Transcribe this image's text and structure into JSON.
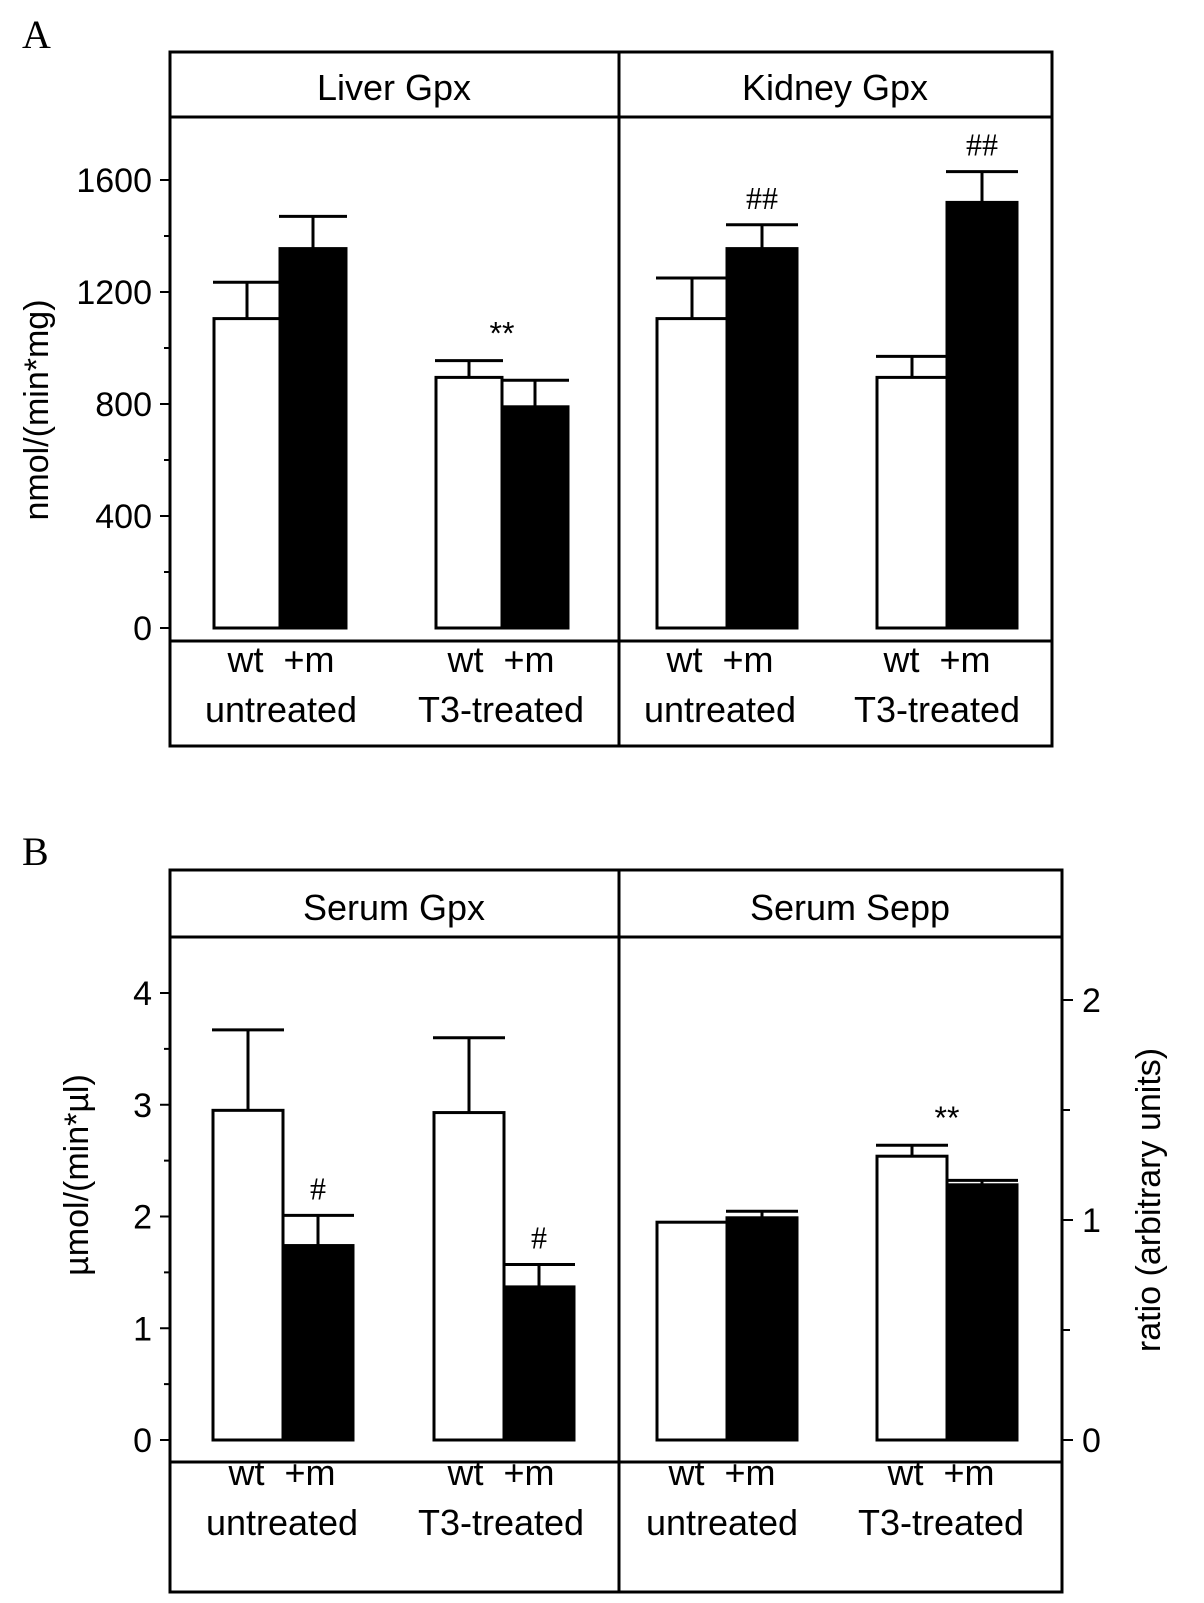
{
  "panels": [
    {
      "id": "A",
      "letter": "A",
      "y_axis_label": "nmol/(min*mg)",
      "y_ticks": [
        "0",
        "400",
        "800",
        "1200",
        "1600"
      ],
      "right_axis_label": "",
      "right_ticks": []
    },
    {
      "id": "B",
      "letter": "B",
      "y_axis_label": "µmol/(min*µl)",
      "y_ticks": [
        "0",
        "1",
        "2",
        "3",
        "4"
      ],
      "right_axis_label": "ratio (arbitrary units)",
      "right_ticks": [
        "0",
        "1",
        "2"
      ]
    }
  ],
  "subplots": [
    {
      "title": "Liver Gpx",
      "labels": {
        "g1_bars": "wt  +m",
        "g1_group": "untreated",
        "g2_bars": "wt  +m",
        "g2_group": "T3-treated"
      }
    },
    {
      "title": "Kidney Gpx",
      "labels": {
        "g1_bars": "wt  +m",
        "g1_group": "untreated",
        "g2_bars": "wt  +m",
        "g2_group": "T3-treated"
      }
    },
    {
      "title": "Serum Gpx",
      "labels": {
        "g1_bars": "wt  +m",
        "g1_group": "untreated",
        "g2_bars": "wt  +m",
        "g2_group": "T3-treated"
      }
    },
    {
      "title": "Serum Sepp",
      "labels": {
        "g1_bars": "wt  +m",
        "g1_group": "untreated",
        "g2_bars": "wt  +m",
        "g2_group": "T3-treated"
      }
    }
  ],
  "chart_data": [
    {
      "type": "bar",
      "panel": "A",
      "title": "Liver Gpx",
      "ylabel": "nmol/(min*mg)",
      "ylim": [
        0,
        1800
      ],
      "categories": [
        "untreated",
        "T3-treated"
      ],
      "series": [
        {
          "name": "wt",
          "color": "#ffffff",
          "values": [
            1105,
            895
          ],
          "errors": [
            130,
            60
          ]
        },
        {
          "name": "+m",
          "color": "#000000",
          "values": [
            1355,
            790
          ],
          "errors": [
            115,
            95
          ]
        }
      ],
      "annotations": [
        {
          "text": "**",
          "category": 1
        }
      ]
    },
    {
      "type": "bar",
      "panel": "A",
      "title": "Kidney Gpx",
      "ylabel": "nmol/(min*mg)",
      "ylim": [
        0,
        1800
      ],
      "categories": [
        "untreated",
        "T3-treated"
      ],
      "series": [
        {
          "name": "wt",
          "color": "#ffffff",
          "values": [
            1105,
            895
          ],
          "errors": [
            145,
            75
          ]
        },
        {
          "name": "+m",
          "color": "#000000",
          "values": [
            1355,
            1520
          ],
          "errors": [
            85,
            110
          ]
        }
      ],
      "annotations": [
        {
          "text": "##",
          "category": 0,
          "series": "+m"
        },
        {
          "text": "##",
          "category": 1,
          "series": "+m"
        }
      ]
    },
    {
      "type": "bar",
      "panel": "B",
      "title": "Serum Gpx",
      "ylabel": "µmol/(min*µl)",
      "ylim": [
        0,
        4.6
      ],
      "categories": [
        "untreated",
        "T3-treated"
      ],
      "series": [
        {
          "name": "wt",
          "color": "#ffffff",
          "values": [
            2.95,
            2.93
          ],
          "errors": [
            0.72,
            0.67
          ]
        },
        {
          "name": "+m",
          "color": "#000000",
          "values": [
            1.74,
            1.37
          ],
          "errors": [
            0.27,
            0.2
          ]
        }
      ],
      "annotations": [
        {
          "text": "#",
          "category": 0,
          "series": "+m"
        },
        {
          "text": "#",
          "category": 1,
          "series": "+m"
        }
      ]
    },
    {
      "type": "bar",
      "panel": "B",
      "title": "Serum Sepp",
      "ylabel": "ratio (arbitrary units)",
      "ylim": [
        0,
        2.3
      ],
      "categories": [
        "untreated",
        "T3-treated"
      ],
      "series": [
        {
          "name": "wt",
          "color": "#ffffff",
          "values": [
            0.99,
            1.29
          ],
          "errors": [
            0,
            0.05
          ]
        },
        {
          "name": "+m",
          "color": "#000000",
          "values": [
            1.01,
            1.16
          ],
          "errors": [
            0.03,
            0.02
          ]
        }
      ],
      "annotations": [
        {
          "text": "**",
          "category": 1
        }
      ]
    }
  ]
}
